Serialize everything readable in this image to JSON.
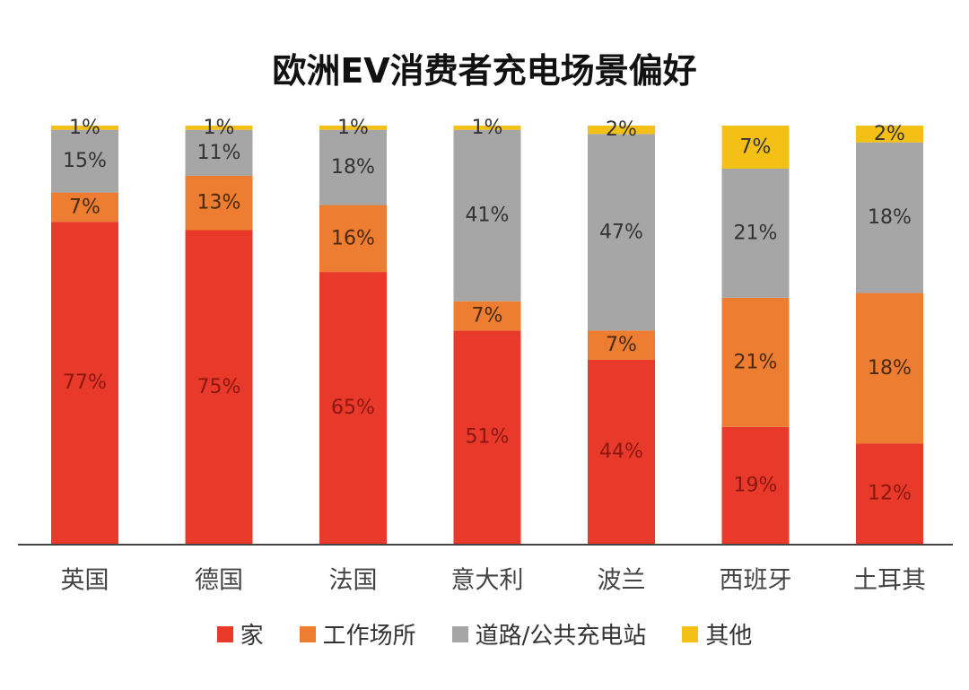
{
  "chart_data": {
    "type": "bar",
    "stacked": true,
    "title": "欧洲EV消费者充电场景偏好",
    "categories": [
      "英国",
      "德国",
      "法国",
      "意大利",
      "波兰",
      "西班牙",
      "土耳其"
    ],
    "series": [
      {
        "name": "家",
        "color": "#e8392b",
        "values": [
          77,
          75,
          65,
          51,
          44,
          19,
          12
        ]
      },
      {
        "name": "工作场所",
        "color": "#ec7d31",
        "values": [
          7,
          13,
          16,
          7,
          7,
          21,
          18
        ]
      },
      {
        "name": "道路/公共充电站",
        "color": "#a6a6a6",
        "values": [
          15,
          11,
          18,
          41,
          47,
          21,
          18
        ]
      },
      {
        "name": "其他",
        "color": "#f5c016",
        "values": [
          1,
          1,
          1,
          1,
          2,
          7,
          2
        ]
      }
    ],
    "value_labels": [
      [
        "77%",
        "75%",
        "65%",
        "51%",
        "44%",
        "19%",
        "12%"
      ],
      [
        "7%",
        "13%",
        "16%",
        "7%",
        "7%",
        "21%",
        "18%"
      ],
      [
        "15%",
        "11%",
        "18%",
        "41%",
        "47%",
        "21%",
        "18%"
      ],
      [
        "1%",
        "1%",
        "1%",
        "1%",
        "2%",
        "7%",
        "2%"
      ]
    ],
    "legend_position": "bottom",
    "grid": false
  }
}
